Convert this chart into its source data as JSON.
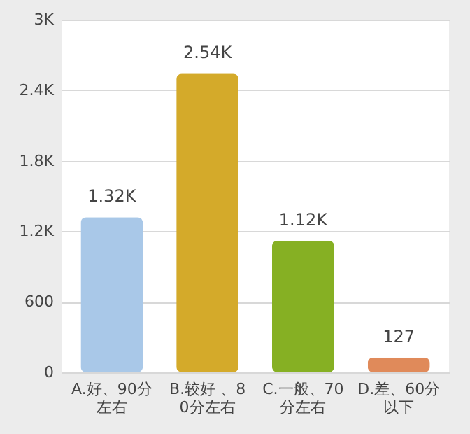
{
  "chart_data": {
    "type": "bar",
    "categories": [
      "A.好、90分左右",
      "B.较好 、80分左右",
      "C.一般、70分左右",
      "D.差、60分以下"
    ],
    "values": [
      1320,
      2540,
      1120,
      127
    ],
    "value_labels": [
      "1.32K",
      "2.54K",
      "1.12K",
      "127"
    ],
    "colors": [
      "#a9c8e8",
      "#d4aa2a",
      "#86b023",
      "#e08a5a"
    ],
    "ylim": [
      0,
      3000
    ],
    "yticks": [
      0,
      600,
      {
        "value": 1200,
        "label": "1.2K"
      },
      {
        "value": 1800,
        "label": "1.8K"
      },
      {
        "value": 2400,
        "label": "2.4K"
      },
      {
        "value": 3000,
        "label": "3K"
      }
    ],
    "grid": "y"
  }
}
